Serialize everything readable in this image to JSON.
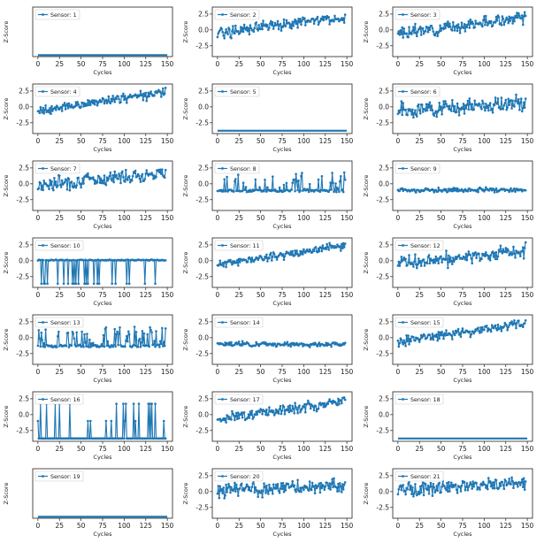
{
  "figure": {
    "series_color": "#1f77b4"
  },
  "chart_data": [
    {
      "type": "line",
      "legend": "Sensor: 1",
      "xlabel": "Cycles",
      "ylabel": "Z-Score",
      "xlim": [
        -6,
        156
      ],
      "ylim": [
        -4,
        4
      ],
      "xticks": [
        0,
        25,
        50,
        75,
        100,
        125,
        150
      ],
      "yticks": [],
      "pattern": "flat",
      "base": -3.75,
      "x_range": [
        0,
        150
      ]
    },
    {
      "type": "line",
      "legend": "Sensor: 2",
      "xlabel": "Cycles",
      "ylabel": "Z-Score",
      "xlim": [
        -6,
        156
      ],
      "ylim": [
        -4.2,
        3.6
      ],
      "xticks": [
        0,
        25,
        50,
        75,
        100,
        125,
        150
      ],
      "yticks": [
        2.5,
        0.0,
        -2.5
      ],
      "pattern": "trend",
      "start": -0.4,
      "end": 2.0,
      "noise": 0.9,
      "seed": 2
    },
    {
      "type": "line",
      "legend": "Sensor: 3",
      "xlabel": "Cycles",
      "ylabel": "Z-Score",
      "xlim": [
        -6,
        156
      ],
      "ylim": [
        -4.2,
        3.6
      ],
      "xticks": [
        0,
        25,
        50,
        75,
        100,
        125,
        150
      ],
      "yticks": [
        2.5,
        0.0,
        -2.5
      ],
      "pattern": "trend",
      "start": -0.6,
      "end": 2.0,
      "noise": 0.9,
      "seed": 3
    },
    {
      "type": "line",
      "legend": "Sensor: 4",
      "xlabel": "Cycles",
      "ylabel": "Z-Score",
      "xlim": [
        -6,
        156
      ],
      "ylim": [
        -4.2,
        3.6
      ],
      "xticks": [
        0,
        25,
        50,
        75,
        100,
        125,
        150
      ],
      "yticks": [
        2.5,
        0.0,
        -2.5
      ],
      "pattern": "trend",
      "start": -0.6,
      "end": 2.3,
      "noise": 0.7,
      "seed": 4
    },
    {
      "type": "line",
      "legend": "Sensor: 5",
      "xlabel": "Cycles",
      "ylabel": "Z-Score",
      "xlim": [
        -6,
        156
      ],
      "ylim": [
        -4.2,
        3.6
      ],
      "xticks": [
        0,
        25,
        50,
        75,
        100,
        125,
        150
      ],
      "yticks": [
        2.5,
        0.0,
        -2.5
      ],
      "pattern": "flat",
      "base": -3.75,
      "x_range": [
        0,
        150
      ]
    },
    {
      "type": "line",
      "legend": "Sensor: 6",
      "xlabel": "Cycles",
      "ylabel": "Z-Score",
      "xlim": [
        -6,
        156
      ],
      "ylim": [
        -4.2,
        3.6
      ],
      "xticks": [
        0,
        25,
        50,
        75,
        100,
        125,
        150
      ],
      "yticks": [
        2.5,
        0.0,
        -2.5
      ],
      "pattern": "trend",
      "start": -0.6,
      "end": 0.6,
      "noise": 1.2,
      "seed": 6
    },
    {
      "type": "line",
      "legend": "Sensor: 7",
      "xlabel": "Cycles",
      "ylabel": "Z-Score",
      "xlim": [
        -6,
        156
      ],
      "ylim": [
        -4.2,
        3.6
      ],
      "xticks": [
        0,
        25,
        50,
        75,
        100,
        125,
        150
      ],
      "yticks": [
        2.5,
        0.0,
        -2.5
      ],
      "pattern": "trend",
      "start": -0.2,
      "end": 1.8,
      "noise": 1.1,
      "seed": 7
    },
    {
      "type": "line",
      "legend": "Sensor: 8",
      "xlabel": "Cycles",
      "ylabel": "Z-Score",
      "xlim": [
        -6,
        156
      ],
      "ylim": [
        -4.2,
        3.6
      ],
      "xticks": [
        0,
        25,
        50,
        75,
        100,
        125,
        150
      ],
      "yticks": [
        2.5,
        0.0,
        -2.5
      ],
      "pattern": "spiky",
      "base": -1.1,
      "spike_to": 1.6,
      "prob": 0.35,
      "seed": 8
    },
    {
      "type": "line",
      "legend": "Sensor: 9",
      "xlabel": "Cycles",
      "ylabel": "Z-Score",
      "xlim": [
        -6,
        156
      ],
      "ylim": [
        -4.2,
        3.6
      ],
      "xticks": [
        0,
        25,
        50,
        75,
        100,
        125,
        150
      ],
      "yticks": [
        2.5,
        0.0,
        -2.5
      ],
      "pattern": "trend",
      "start": -1.0,
      "end": -1.0,
      "noise": 0.35,
      "seed": 9
    },
    {
      "type": "line",
      "legend": "Sensor: 10",
      "xlabel": "Cycles",
      "ylabel": "Z-Score",
      "xlim": [
        -6,
        156
      ],
      "ylim": [
        -4.2,
        3.6
      ],
      "xticks": [
        0,
        25,
        50,
        75,
        100,
        125,
        150
      ],
      "yticks": [
        2.5,
        0.0,
        -2.5
      ],
      "pattern": "drops",
      "base": 0.1,
      "drop_to": -3.6,
      "prob": 0.15,
      "seed": 10
    },
    {
      "type": "line",
      "legend": "Sensor: 11",
      "xlabel": "Cycles",
      "ylabel": "Z-Score",
      "xlim": [
        -6,
        156
      ],
      "ylim": [
        -4.2,
        3.6
      ],
      "xticks": [
        0,
        25,
        50,
        75,
        100,
        125,
        150
      ],
      "yticks": [
        2.5,
        0.0,
        -2.5
      ],
      "pattern": "trend",
      "start": -0.6,
      "end": 2.4,
      "noise": 0.6,
      "seed": 11
    },
    {
      "type": "line",
      "legend": "Sensor: 12",
      "xlabel": "Cycles",
      "ylabel": "Z-Score",
      "xlim": [
        -6,
        156
      ],
      "ylim": [
        -4.2,
        3.6
      ],
      "xticks": [
        0,
        25,
        50,
        75,
        100,
        125,
        150
      ],
      "yticks": [
        2.5,
        0.0,
        -2.5
      ],
      "pattern": "trend",
      "start": -0.4,
      "end": 1.5,
      "noise": 1.1,
      "seed": 12
    },
    {
      "type": "line",
      "legend": "Sensor: 13",
      "xlabel": "Cycles",
      "ylabel": "Z-Score",
      "xlim": [
        -6,
        156
      ],
      "ylim": [
        -4.2,
        3.6
      ],
      "xticks": [
        0,
        25,
        50,
        75,
        100,
        125,
        150
      ],
      "yticks": [
        2.5,
        0.0,
        -2.5
      ],
      "pattern": "spiky",
      "base": -1.3,
      "spike_to": 1.5,
      "prob": 0.3,
      "seed": 13
    },
    {
      "type": "line",
      "legend": "Sensor: 14",
      "xlabel": "Cycles",
      "ylabel": "Z-Score",
      "xlim": [
        -6,
        156
      ],
      "ylim": [
        -4.2,
        3.6
      ],
      "xticks": [
        0,
        25,
        50,
        75,
        100,
        125,
        150
      ],
      "yticks": [
        2.5,
        0.0,
        -2.5
      ],
      "pattern": "trend",
      "start": -1.0,
      "end": -1.1,
      "noise": 0.35,
      "seed": 14
    },
    {
      "type": "line",
      "legend": "Sensor: 15",
      "xlabel": "Cycles",
      "ylabel": "Z-Score",
      "xlim": [
        -6,
        156
      ],
      "ylim": [
        -4.2,
        3.6
      ],
      "xticks": [
        0,
        25,
        50,
        75,
        100,
        125,
        150
      ],
      "yticks": [
        2.5,
        0.0,
        -2.5
      ],
      "pattern": "trend",
      "start": -0.6,
      "end": 2.3,
      "noise": 0.7,
      "seed": 15
    },
    {
      "type": "line",
      "legend": "Sensor: 16",
      "xlabel": "Cycles",
      "ylabel": "Z-Score",
      "xlim": [
        -6,
        156
      ],
      "ylim": [
        -4.2,
        3.6
      ],
      "xticks": [
        0,
        25,
        50,
        75,
        100,
        125,
        150
      ],
      "yticks": [
        2.5,
        0.0,
        -2.5
      ],
      "pattern": "pulses",
      "base": -3.75,
      "level_a": -1.0,
      "level_b": 1.7,
      "prob": 0.12,
      "seed": 16
    },
    {
      "type": "line",
      "legend": "Sensor: 17",
      "xlabel": "Cycles",
      "ylabel": "Z-Score",
      "xlim": [
        -6,
        156
      ],
      "ylim": [
        -4.2,
        3.6
      ],
      "xticks": [
        0,
        25,
        50,
        75,
        100,
        125,
        150
      ],
      "yticks": [
        2.5,
        0.0,
        -2.5
      ],
      "pattern": "trend",
      "start": -0.7,
      "end": 2.2,
      "noise": 0.8,
      "seed": 17
    },
    {
      "type": "line",
      "legend": "Sensor: 18",
      "xlabel": "Cycles",
      "ylabel": "Z-Score",
      "xlim": [
        -6,
        156
      ],
      "ylim": [
        -4.2,
        3.6
      ],
      "xticks": [
        0,
        25,
        50,
        75,
        100,
        125,
        150
      ],
      "yticks": [
        2.5,
        0.0,
        -2.5
      ],
      "pattern": "flat",
      "base": -3.75,
      "x_range": [
        0,
        150
      ]
    },
    {
      "type": "line",
      "legend": "Sensor: 19",
      "xlabel": "Cycles",
      "ylabel": "Z-Score",
      "xlim": [
        -6,
        156
      ],
      "ylim": [
        -4,
        4
      ],
      "xticks": [
        0,
        25,
        50,
        75,
        100,
        125,
        150
      ],
      "yticks": [],
      "pattern": "flat",
      "base": -3.75,
      "x_range": [
        0,
        150
      ]
    },
    {
      "type": "line",
      "legend": "Sensor: 20",
      "xlabel": "Cycles",
      "ylabel": "Z-Score",
      "xlim": [
        -6,
        156
      ],
      "ylim": [
        -4.2,
        3.6
      ],
      "xticks": [
        0,
        25,
        50,
        75,
        100,
        125,
        150
      ],
      "yticks": [
        2.5,
        0.0,
        -2.5
      ],
      "pattern": "trend",
      "start": 0.3,
      "end": 0.9,
      "noise": 1.1,
      "seed": 20
    },
    {
      "type": "line",
      "legend": "Sensor: 21",
      "xlabel": "Cycles",
      "ylabel": "Z-Score",
      "xlim": [
        -6,
        156
      ],
      "ylim": [
        -4.2,
        3.6
      ],
      "xticks": [
        0,
        25,
        50,
        75,
        100,
        125,
        150
      ],
      "yticks": [
        2.5,
        0.0,
        -2.5
      ],
      "pattern": "trend",
      "start": 0.3,
      "end": 1.3,
      "noise": 1.0,
      "seed": 21
    }
  ]
}
